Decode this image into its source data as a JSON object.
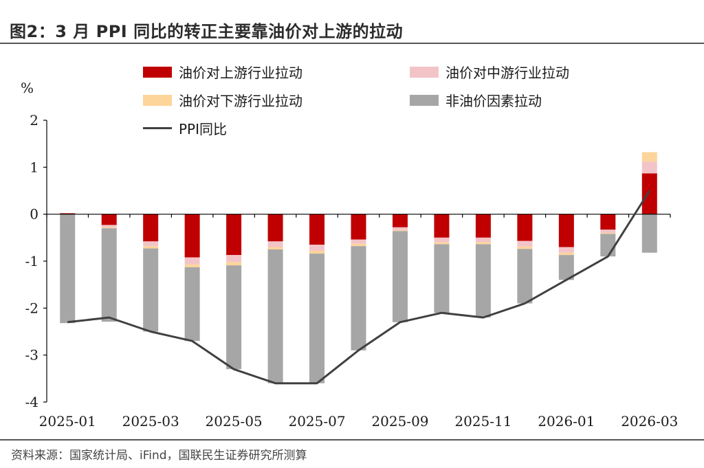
{
  "title": "图2：3 月 PPI 同比的转正主要靠油价对上游的拉动",
  "source": "资料来源：国家统计局、iFind，国联民生证券研究所测算",
  "colors": {
    "upstream": "#c00000",
    "midstream": "#f2c4c8",
    "downstream": "#fdd49a",
    "non_oil": "#a6a6a6",
    "ppi": "#404040"
  },
  "chart_data": {
    "type": "bar",
    "stacked": true,
    "unit": "%",
    "ylim": [
      -4,
      2
    ],
    "yticks": [
      2,
      1,
      0,
      -1,
      -2,
      -3,
      -4
    ],
    "categories": [
      "2025-01",
      "2025-02",
      "2025-03",
      "2025-04",
      "2025-05",
      "2025-06",
      "2025-07",
      "2025-08",
      "2025-09",
      "2025-10",
      "2025-11",
      "2025-12",
      "2026-01",
      "2026-02",
      "2026-03"
    ],
    "xtick_labels": [
      "2025-01",
      "2025-03",
      "2025-05",
      "2025-07",
      "2025-09",
      "2025-11",
      "2026-01",
      "2026-03"
    ],
    "series": [
      {
        "name": "油价对上游行业拉动",
        "key": "upstream",
        "kind": "bar",
        "values": [
          0.02,
          -0.23,
          -0.58,
          -0.92,
          -0.87,
          -0.58,
          -0.65,
          -0.54,
          -0.28,
          -0.5,
          -0.5,
          -0.57,
          -0.7,
          -0.33,
          0.87
        ]
      },
      {
        "name": "油价对中游行业拉动",
        "key": "midstream",
        "kind": "bar",
        "values": [
          0.0,
          -0.05,
          -0.1,
          -0.15,
          -0.15,
          -0.12,
          -0.13,
          -0.09,
          -0.06,
          -0.1,
          -0.1,
          -0.12,
          -0.12,
          -0.07,
          0.25
        ]
      },
      {
        "name": "油价对下游行业拉动",
        "key": "downstream",
        "kind": "bar",
        "values": [
          0.0,
          -0.02,
          -0.05,
          -0.06,
          -0.07,
          -0.05,
          -0.06,
          -0.05,
          -0.02,
          -0.04,
          -0.04,
          -0.05,
          -0.05,
          -0.02,
          0.2
        ]
      },
      {
        "name": "非油价因素拉动",
        "key": "non_oil",
        "kind": "bar",
        "values": [
          -2.32,
          -1.99,
          -1.77,
          -1.57,
          -2.21,
          -2.85,
          -2.76,
          -2.22,
          -1.94,
          -1.46,
          -1.56,
          -1.16,
          -0.53,
          -0.48,
          -0.82
        ]
      },
      {
        "name": "PPI同比",
        "key": "ppi",
        "kind": "line",
        "values": [
          -2.3,
          -2.2,
          -2.5,
          -2.7,
          -3.3,
          -3.6,
          -3.6,
          -2.9,
          -2.3,
          -2.1,
          -2.2,
          -1.9,
          -1.4,
          -0.9,
          0.5
        ]
      }
    ]
  }
}
